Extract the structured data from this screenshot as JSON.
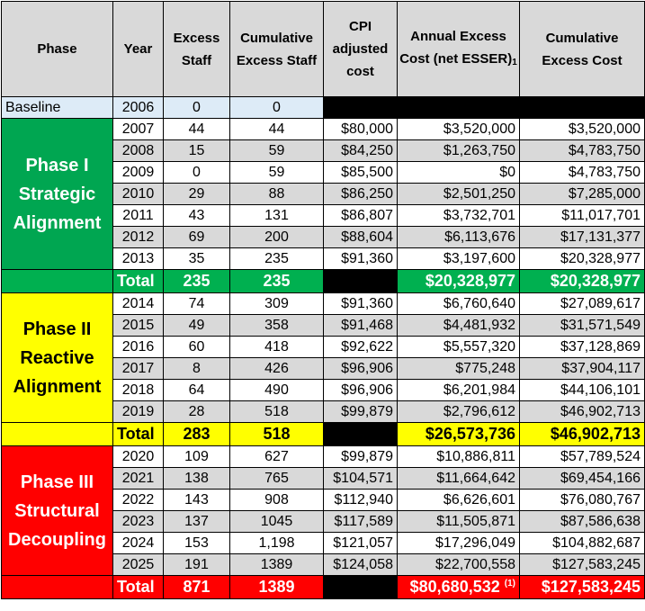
{
  "headers": {
    "phase": "Phase",
    "year": "Year",
    "excess_staff": "Excess Staff",
    "cumulative_staff": "Cumulative Excess Staff",
    "cpi": "CPI adjusted cost",
    "annual_cost": "Annual Excess Cost (net ESSER)",
    "annual_cost_sub": "1",
    "cumulative_cost": "Cumulative Excess Cost"
  },
  "baseline": {
    "label": "Baseline",
    "year": "2006",
    "excess": "0",
    "cumulative": "0"
  },
  "phase1": {
    "name": "Phase I Strategic Alignment",
    "color": "#00a651",
    "rows": [
      {
        "year": "2007",
        "excess": "44",
        "cumulative": "44",
        "cpi": "$80,000",
        "annual": "$3,520,000",
        "cum_cost": "$3,520,000"
      },
      {
        "year": "2008",
        "excess": "15",
        "cumulative": "59",
        "cpi": "$84,250",
        "annual": "$1,263,750",
        "cum_cost": "$4,783,750"
      },
      {
        "year": "2009",
        "excess": "0",
        "cumulative": "59",
        "cpi": "$85,500",
        "annual": "$0",
        "cum_cost": "$4,783,750"
      },
      {
        "year": "2010",
        "excess": "29",
        "cumulative": "88",
        "cpi": "$86,250",
        "annual": "$2,501,250",
        "cum_cost": "$7,285,000"
      },
      {
        "year": "2011",
        "excess": "43",
        "cumulative": "131",
        "cpi": "$86,807",
        "annual": "$3,732,701",
        "cum_cost": "$11,017,701"
      },
      {
        "year": "2012",
        "excess": "69",
        "cumulative": "200",
        "cpi": "$88,604",
        "annual": "$6,113,676",
        "cum_cost": "$17,131,377"
      },
      {
        "year": "2013",
        "excess": "35",
        "cumulative": "235",
        "cpi": "$91,360",
        "annual": "$3,197,600",
        "cum_cost": "$20,328,977"
      }
    ],
    "total": {
      "label": "Total",
      "excess": "235",
      "cumulative": "235",
      "annual": "$20,328,977",
      "cum_cost": "$20,328,977"
    }
  },
  "phase2": {
    "name": "Phase II Reactive Alignment",
    "color": "#ffff00",
    "rows": [
      {
        "year": "2014",
        "excess": "74",
        "cumulative": "309",
        "cpi": "$91,360",
        "annual": "$6,760,640",
        "cum_cost": "$27,089,617"
      },
      {
        "year": "2015",
        "excess": "49",
        "cumulative": "358",
        "cpi": "$91,468",
        "annual": "$4,481,932",
        "cum_cost": "$31,571,549"
      },
      {
        "year": "2016",
        "excess": "60",
        "cumulative": "418",
        "cpi": "$92,622",
        "annual": "$5,557,320",
        "cum_cost": "$37,128,869"
      },
      {
        "year": "2017",
        "excess": "8",
        "cumulative": "426",
        "cpi": "$96,906",
        "annual": "$775,248",
        "cum_cost": "$37,904,117"
      },
      {
        "year": "2018",
        "excess": "64",
        "cumulative": "490",
        "cpi": "$96,906",
        "annual": "$6,201,984",
        "cum_cost": "$44,106,101"
      },
      {
        "year": "2019",
        "excess": "28",
        "cumulative": "518",
        "cpi": "$99,879",
        "annual": "$2,796,612",
        "cum_cost": "$46,902,713"
      }
    ],
    "total": {
      "label": "Total",
      "excess": "283",
      "cumulative": "518",
      "annual": "$26,573,736",
      "cum_cost": "$46,902,713"
    }
  },
  "phase3": {
    "name": "Phase III Structural Decoupling",
    "color": "#ff0000",
    "rows": [
      {
        "year": "2020",
        "excess": "109",
        "cumulative": "627",
        "cpi": "$99,879",
        "annual": "$10,886,811",
        "cum_cost": "$57,789,524"
      },
      {
        "year": "2021",
        "excess": "138",
        "cumulative": "765",
        "cpi": "$104,571",
        "annual": "$11,664,642",
        "cum_cost": "$69,454,166"
      },
      {
        "year": "2022",
        "excess": "143",
        "cumulative": "908",
        "cpi": "$112,940",
        "annual": "$6,626,601",
        "cum_cost": "$76,080,767"
      },
      {
        "year": "2023",
        "excess": "137",
        "cumulative": "1045",
        "cpi": "$117,589",
        "annual": "$11,505,871",
        "cum_cost": "$87,586,638"
      },
      {
        "year": "2024",
        "excess": "153",
        "cumulative": "1,198",
        "cpi": "$121,057",
        "annual": "$17,296,049",
        "cum_cost": "$104,882,687"
      },
      {
        "year": "2025",
        "excess": "191",
        "cumulative": "1389",
        "cpi": "$124,058",
        "annual": "$22,700,558",
        "cum_cost": "$127,583,245"
      }
    ],
    "total": {
      "label": "Total",
      "excess": "871",
      "cumulative": "1389",
      "annual": "$80,680,532",
      "annual_note": "(1)",
      "cum_cost": "$127,583,245"
    }
  }
}
